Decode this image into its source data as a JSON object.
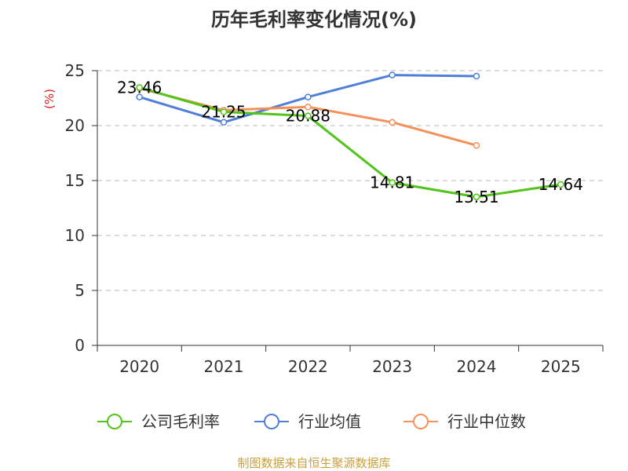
{
  "chart_data": {
    "type": "line",
    "title": "历年毛利率变化情况(%)",
    "ylabel": "(%)",
    "xlabel": "",
    "categories": [
      "2020",
      "2021",
      "2022",
      "2023",
      "2024",
      "2025"
    ],
    "ylim": [
      0,
      25
    ],
    "yticks": [
      "0",
      "5",
      "10",
      "15",
      "20",
      "25"
    ],
    "grid": true,
    "legend_position": "bottom",
    "series": [
      {
        "name": "公司毛利率",
        "color": "#52c41a",
        "values": [
          23.46,
          21.25,
          20.88,
          14.81,
          13.51,
          14.64
        ],
        "labels": [
          "23.46",
          "21.25",
          "20.88",
          "14.81",
          "13.51",
          "14.64"
        ]
      },
      {
        "name": "行业均值",
        "color": "#4f7fd9",
        "values": [
          22.6,
          20.3,
          22.6,
          24.6,
          24.5,
          null
        ]
      },
      {
        "name": "行业中位数",
        "color": "#f5905a",
        "values": [
          23.4,
          21.4,
          21.7,
          20.3,
          18.2,
          null
        ]
      }
    ]
  },
  "source": "制图数据来自恒生聚源数据库",
  "colors": {
    "ylabel": "#e02020",
    "source": "#c8a040",
    "grid": "#bbbbbb",
    "axis": "#333333"
  }
}
